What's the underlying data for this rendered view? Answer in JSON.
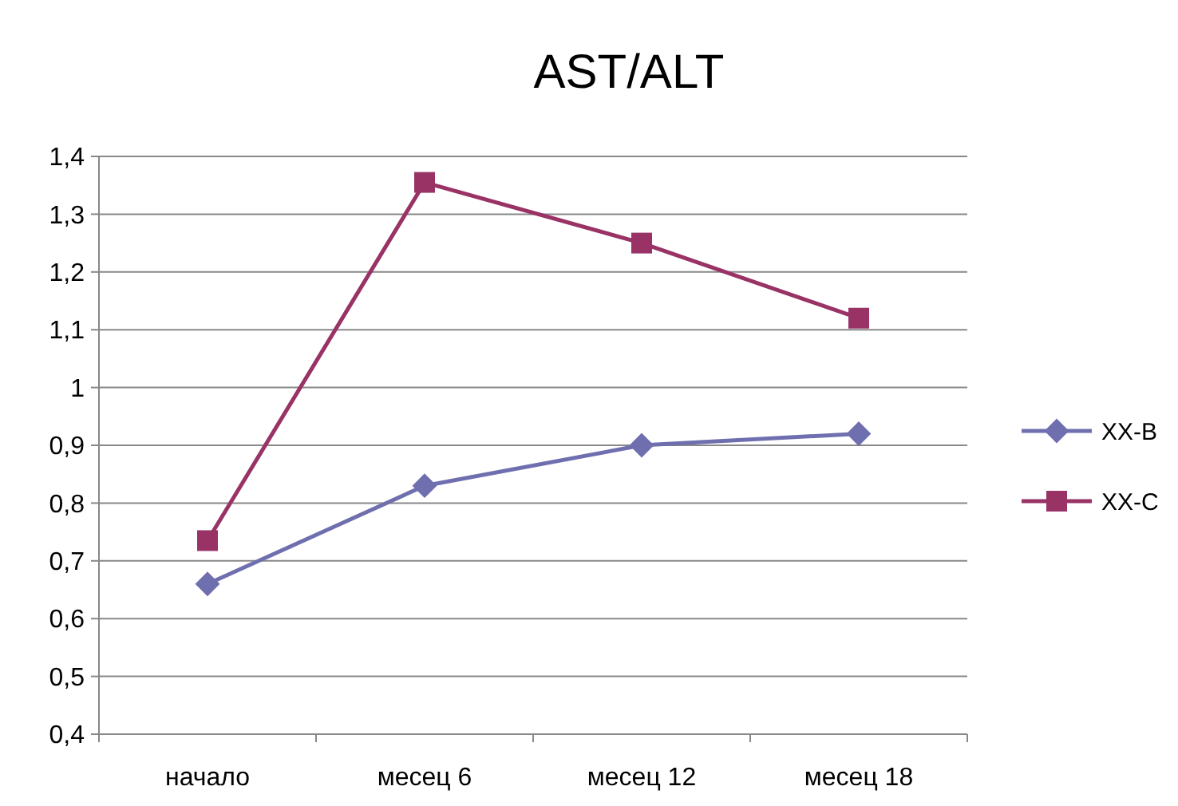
{
  "chart_data": {
    "type": "line",
    "title": "AST/ALT",
    "categories": [
      "начало",
      "месец 6",
      "месец 12",
      "месец 18"
    ],
    "series": [
      {
        "name": "XX-B",
        "color": "#6f6fb0",
        "marker": "diamond",
        "values": [
          0.66,
          0.83,
          0.9,
          0.92
        ]
      },
      {
        "name": "XX-C",
        "color": "#993366",
        "marker": "square",
        "values": [
          0.735,
          1.355,
          1.25,
          1.12
        ]
      }
    ],
    "ylim": [
      0.4,
      1.4
    ],
    "yticks": [
      {
        "value": 0.4,
        "label": "0,4"
      },
      {
        "value": 0.5,
        "label": "0,5"
      },
      {
        "value": 0.6,
        "label": "0,6"
      },
      {
        "value": 0.7,
        "label": "0,7"
      },
      {
        "value": 0.8,
        "label": "0,8"
      },
      {
        "value": 0.9,
        "label": "0,9"
      },
      1,
      {
        "value": 1.1,
        "label": "1,1"
      },
      {
        "value": 1.2,
        "label": "1,2"
      },
      {
        "value": 1.3,
        "label": "1,3"
      },
      {
        "value": 1.4,
        "label": "1,4"
      }
    ],
    "grid": "y",
    "legend": "right"
  }
}
